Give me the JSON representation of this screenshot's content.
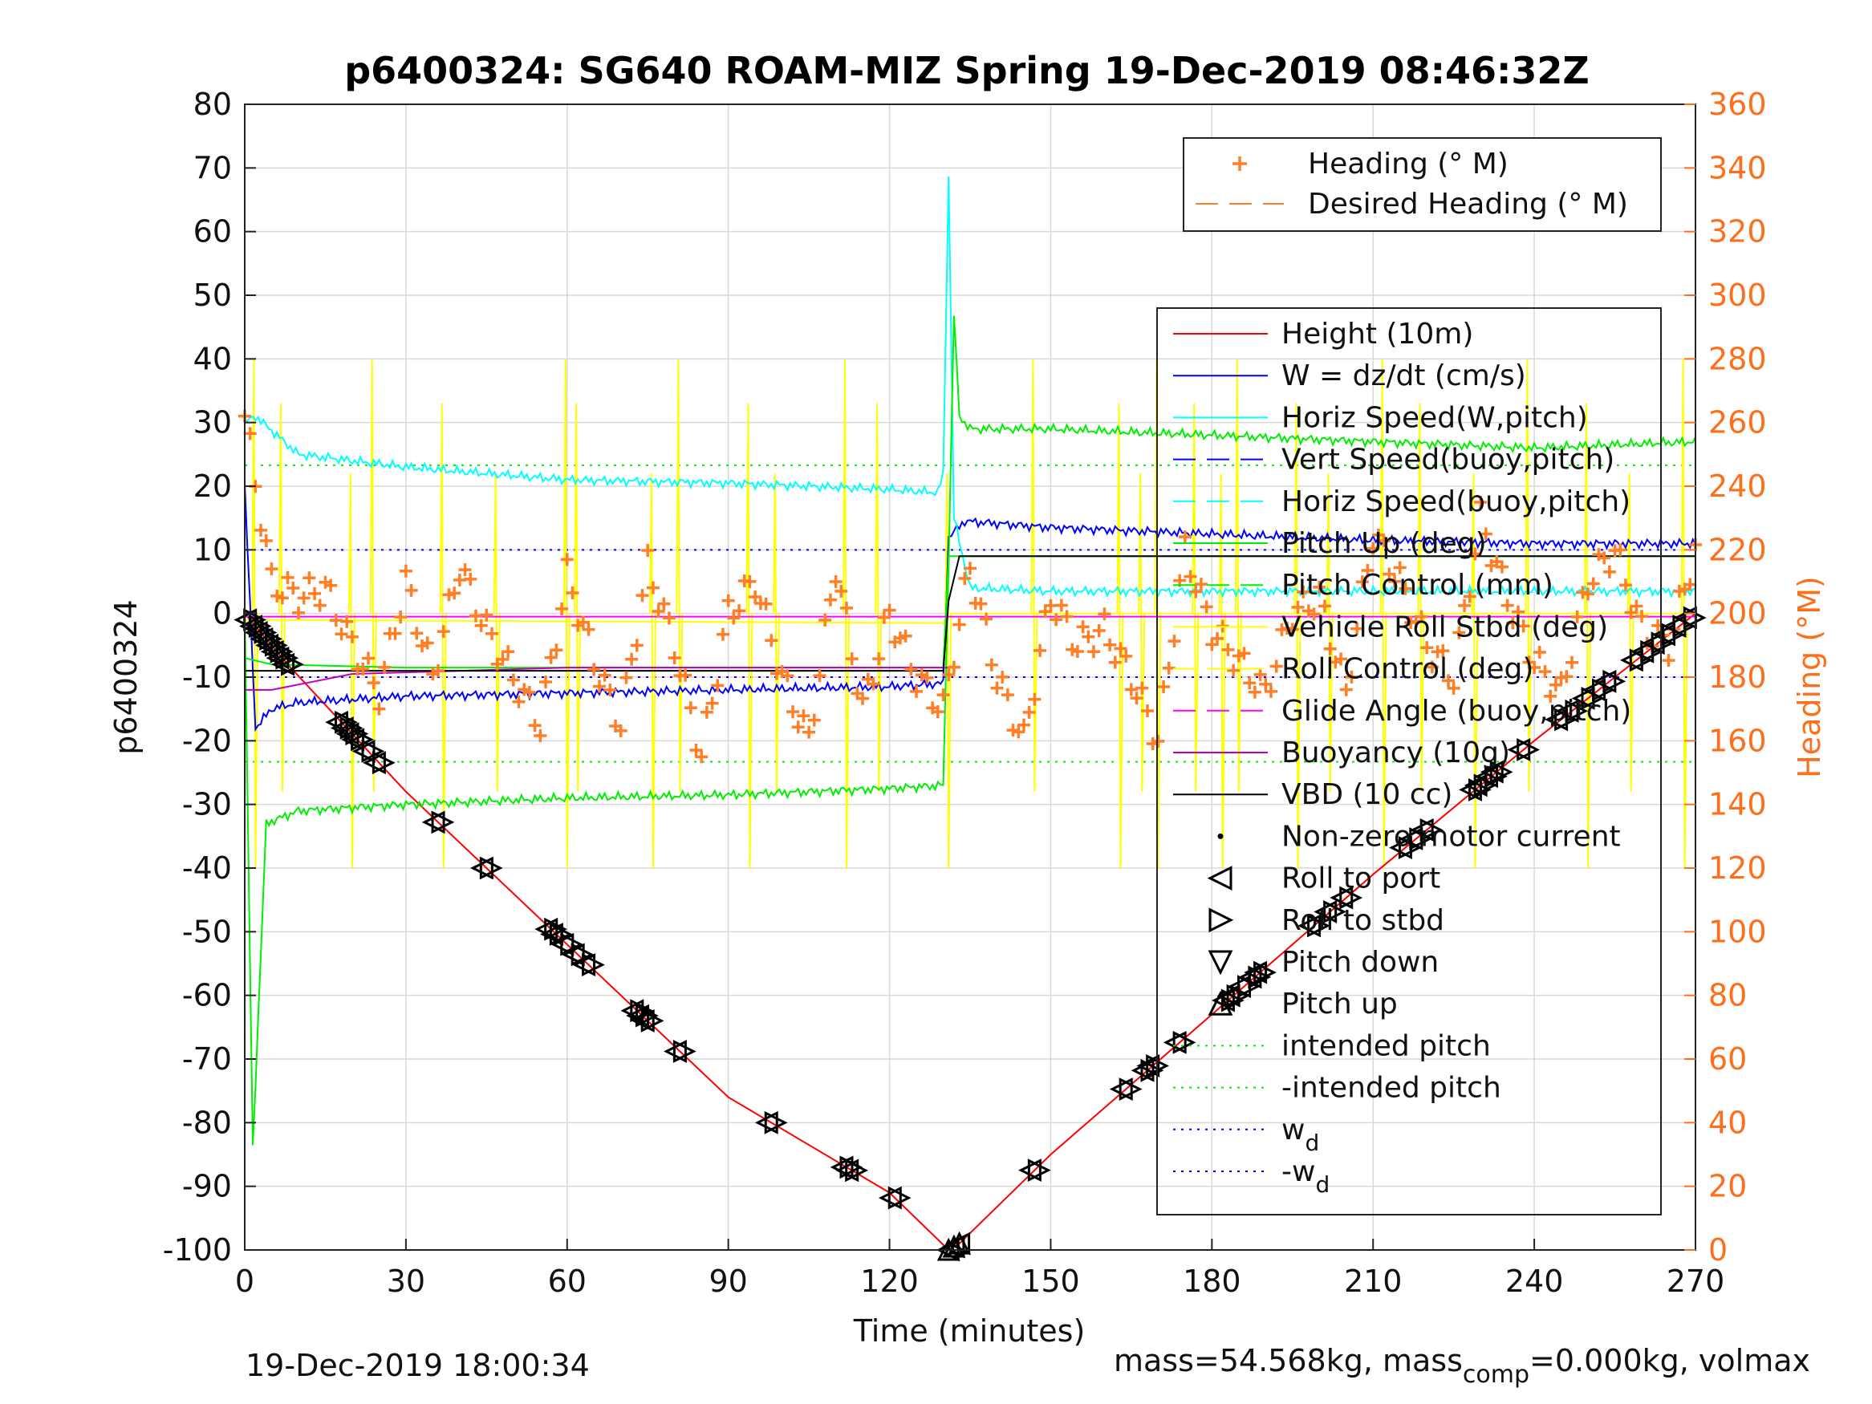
{
  "chart_data": {
    "type": "line",
    "title": "p6400324: SG640 ROAM-MIZ Spring 19-Dec-2019 08:46:32Z",
    "xlabel": "Time (minutes)",
    "ylabel": "p6400324",
    "y2label": "Heading (°M)",
    "xlim": [
      0,
      270
    ],
    "ylim": [
      -100,
      80
    ],
    "y2lim": [
      0,
      360
    ],
    "xticks": [
      "0",
      "30",
      "60",
      "90",
      "120",
      "150",
      "180",
      "210",
      "240",
      "270"
    ],
    "yticks": [
      "-100",
      "-90",
      "-80",
      "-70",
      "-60",
      "-50",
      "-40",
      "-30",
      "-20",
      "-10",
      "0",
      "10",
      "20",
      "30",
      "40",
      "50",
      "60",
      "70",
      "80"
    ],
    "y2ticks": [
      "0",
      "20",
      "40",
      "60",
      "80",
      "100",
      "120",
      "140",
      "160",
      "180",
      "200",
      "220",
      "240",
      "260",
      "280",
      "300",
      "320",
      "340",
      "360"
    ],
    "grid": true,
    "footer_left": "19-Dec-2019 18:00:34",
    "footer_right_a": "mass=54.568kg, mass",
    "footer_right_sub": "comp",
    "footer_right_b": "=0.000kg, volmax",
    "legend_heading": [
      {
        "label": "Heading (° M)",
        "color": "#ff7f27",
        "style": "plus"
      },
      {
        "label": "Desired Heading (° M)",
        "color": "#ff7f27",
        "style": "dash"
      }
    ],
    "legend_main": [
      {
        "label": "Height (10m)",
        "color": "#ff0000",
        "style": "solid"
      },
      {
        "label": "W = dz/dt (cm/s)",
        "color": "#0000ff",
        "style": "solid"
      },
      {
        "label": "Horiz Speed(W,pitch)",
        "color": "#00ffff",
        "style": "solid"
      },
      {
        "label": "Vert Speed(buoy,pitch)",
        "color": "#0000ff",
        "style": "dash"
      },
      {
        "label": "Horiz Speed(buoy,pitch)",
        "color": "#00ffff",
        "style": "dash"
      },
      {
        "label": "Pitch Up (deg)",
        "color": "#00ee00",
        "style": "solid"
      },
      {
        "label": "Pitch Control (mm)",
        "color": "#00ee00",
        "style": "dash"
      },
      {
        "label": "Vehicle Roll Stbd (deg)",
        "color": "#ffff00",
        "style": "solid"
      },
      {
        "label": "Roll Control (deg)",
        "color": "#ffff00",
        "style": "dash"
      },
      {
        "label": "Glide Angle (buoy,pitch)",
        "color": "#ff00ff",
        "style": "dash"
      },
      {
        "label": "Buoyancy (10g)",
        "color": "#c000c0",
        "style": "solid"
      },
      {
        "label": "VBD (10 cc)",
        "color": "#000000",
        "style": "solid"
      },
      {
        "label": "Non-zero motor current",
        "color": "#000000",
        "style": "dot"
      },
      {
        "label": "Roll to port",
        "color": "#000000",
        "style": "tri-left"
      },
      {
        "label": "Roll to stbd",
        "color": "#000000",
        "style": "tri-right"
      },
      {
        "label": "Pitch down",
        "color": "#000000",
        "style": "tri-down"
      },
      {
        "label": "Pitch up",
        "color": "#000000",
        "style": "tri-up"
      },
      {
        "label": "intended pitch",
        "color": "#00ee00",
        "style": "dotted"
      },
      {
        "label": "-intended pitch",
        "color": "#00ee00",
        "style": "dotted"
      },
      {
        "label": "w",
        "sub": "d",
        "color": "#0000ff",
        "style": "dotted"
      },
      {
        "label": "-w",
        "sub": "d",
        "color": "#0000ff",
        "style": "dotted"
      }
    ],
    "series": [
      {
        "name": "Height (10m)",
        "color": "#ff0000",
        "x": [
          0,
          8,
          30,
          60,
          90,
          120,
          131,
          133,
          150,
          180,
          210,
          240,
          270
        ],
        "y": [
          0,
          -8,
          -28,
          -52,
          -76,
          -91,
          -100,
          -99,
          -85,
          -63,
          -41,
          -20,
          0
        ]
      },
      {
        "name": "W = dz/dt (cm/s)",
        "color": "#0000ff",
        "x": [
          0,
          2,
          5,
          10,
          30,
          60,
          90,
          120,
          130,
          131,
          134,
          150,
          180,
          210,
          240,
          270
        ],
        "y": [
          20,
          -18,
          -15,
          -14,
          -13,
          -12.5,
          -12,
          -11.5,
          -11,
          12,
          14.5,
          13.5,
          12.5,
          11.5,
          11,
          11
        ]
      },
      {
        "name": "Horiz Speed(W,pitch)",
        "color": "#00ffff",
        "x": [
          0,
          2,
          10,
          30,
          60,
          90,
          120,
          129,
          130,
          131,
          132,
          135,
          150,
          180,
          210,
          240,
          270
        ],
        "y": [
          30,
          31,
          25,
          23,
          21,
          20.5,
          19.5,
          19,
          22,
          69,
          15,
          4,
          3.5,
          3.5,
          3.5,
          3.5,
          3.5
        ]
      },
      {
        "name": "Pitch Up (deg)",
        "color": "#00ee00",
        "x": [
          0,
          1.5,
          4,
          10,
          30,
          60,
          90,
          120,
          130,
          131,
          132,
          133,
          135,
          150,
          180,
          210,
          240,
          270
        ],
        "y": [
          0,
          -84,
          -33,
          -31,
          -30,
          -29,
          -28.5,
          -27.5,
          -27,
          8,
          47,
          31,
          29,
          29,
          28,
          27,
          26,
          27
        ]
      },
      {
        "name": "Pitch Control (mm)",
        "color": "#00ee00",
        "x": [
          0,
          5,
          30,
          60,
          90,
          120,
          130,
          131,
          150,
          180,
          210,
          240,
          270
        ],
        "y": [
          -7,
          -8,
          -8.5,
          -8.5,
          -8.5,
          -8.5,
          -8.5,
          9,
          9,
          9,
          9,
          9,
          9
        ]
      },
      {
        "name": "Glide Angle (buoy,pitch)",
        "color": "#ff00ff",
        "x": [
          0,
          270
        ],
        "y": [
          -0.5,
          -0.5
        ]
      },
      {
        "name": "Buoyancy (10g)",
        "color": "#c000c0",
        "x": [
          0,
          5,
          20,
          40,
          60,
          90,
          120,
          130,
          131
        ],
        "y": [
          -12,
          -12,
          -9.5,
          -9,
          -8.5,
          -8.5,
          -8.5,
          -8.5,
          -8.5
        ]
      },
      {
        "name": "VBD (10 cc)",
        "color": "#000000",
        "x": [
          0,
          5,
          30,
          60,
          90,
          120,
          130,
          131,
          133,
          150,
          180,
          210,
          240,
          270
        ],
        "y": [
          -9,
          -9,
          -9,
          -9,
          -9,
          -9,
          -9,
          2,
          9,
          9,
          9,
          9,
          9,
          9
        ]
      },
      {
        "name": "Heading (° M)",
        "color": "#ff7f27",
        "x": [
          0,
          5,
          10,
          15,
          20,
          25,
          30,
          35,
          40,
          45,
          50,
          55,
          60,
          65,
          70,
          75,
          80,
          85,
          90,
          95,
          100,
          105,
          110,
          115,
          120,
          125,
          130,
          135,
          140,
          145,
          150,
          155,
          160,
          165,
          170,
          175,
          180,
          185,
          190,
          195,
          200,
          205,
          210,
          215,
          220,
          225,
          230,
          235,
          240,
          245,
          250,
          255,
          260,
          265,
          270
        ],
        "y": [
          262,
          210,
          205,
          208,
          190,
          175,
          210,
          180,
          215,
          195,
          180,
          165,
          212,
          185,
          165,
          215,
          190,
          155,
          200,
          210,
          180,
          160,
          215,
          170,
          200,
          180,
          170,
          215,
          180,
          160,
          205,
          190,
          195,
          180,
          160,
          220,
          195,
          185,
          175,
          200,
          205,
          175,
          225,
          210,
          190,
          180,
          230,
          205,
          185,
          175,
          210,
          220,
          195,
          190,
          220
        ]
      }
    ],
    "yellow_spikes_x": [
      2,
      7,
      20,
      24,
      37,
      47,
      60,
      62,
      76,
      81,
      94,
      99,
      112,
      118,
      131,
      147,
      163,
      167,
      170,
      177,
      182,
      185,
      196,
      202,
      212,
      219,
      229,
      239,
      250,
      258,
      268
    ],
    "intended_pitch": 23.3,
    "w_d": 10,
    "marker_samples": {
      "dive_x": [
        1,
        2,
        3,
        4,
        5,
        6,
        7,
        8,
        18,
        19,
        20,
        21,
        23,
        25,
        36,
        45,
        57,
        58,
        60,
        62,
        64,
        73,
        74,
        75,
        81,
        98,
        112,
        113,
        121
      ],
      "bottom_x": [
        131,
        132,
        133
      ],
      "climb_x": [
        147,
        164,
        168,
        169,
        174,
        183,
        184,
        186,
        188,
        189,
        199,
        202,
        205,
        216,
        218,
        220,
        229,
        230,
        232,
        233,
        238,
        245,
        247,
        250,
        252,
        254,
        259,
        261,
        263,
        265,
        267,
        269
      ]
    }
  }
}
